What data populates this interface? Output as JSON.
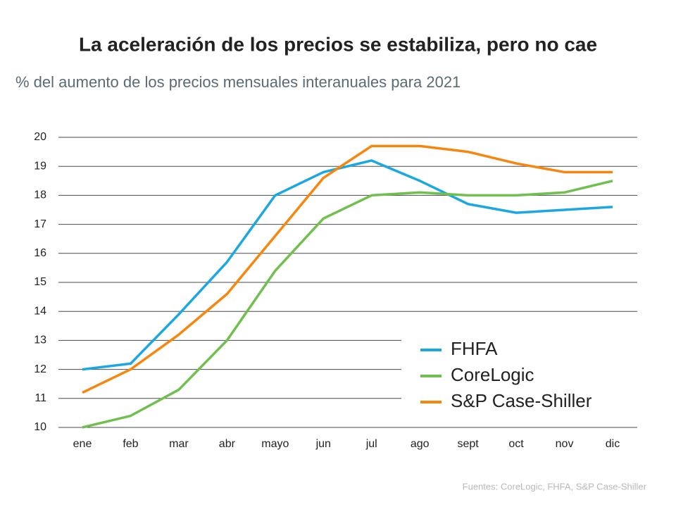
{
  "chart_data": {
    "type": "line",
    "title": "La aceleración de los precios se estabiliza, pero no cae",
    "subtitle": "% del aumento de los precios mensuales interanuales para 2021",
    "source": "Fuentes:  CoreLogic, FHFA, S&P Case-Shiller",
    "categories": [
      "ene",
      "feb",
      "mar",
      "abr",
      "mayo",
      "jun",
      "jul",
      "ago",
      "sept",
      "oct",
      "nov",
      "dic"
    ],
    "series": [
      {
        "name": "FHFA",
        "color": "#1ba7e1",
        "values": [
          12.0,
          12.2,
          13.9,
          15.7,
          18.0,
          18.8,
          19.2,
          18.5,
          17.7,
          17.4,
          17.5,
          17.6
        ]
      },
      {
        "name": "CoreLogic",
        "color": "#70bf4f",
        "values": [
          10.0,
          10.4,
          11.3,
          13.0,
          15.4,
          17.2,
          18.0,
          18.1,
          18.0,
          18.0,
          18.1,
          18.5
        ]
      },
      {
        "name": "S&P Case-Shiller",
        "color": "#f7860e",
        "values": [
          11.2,
          12.0,
          13.2,
          14.6,
          16.6,
          18.6,
          19.7,
          19.7,
          19.5,
          19.1,
          18.8,
          18.8
        ]
      }
    ],
    "ylim": [
      10,
      20
    ],
    "yticks": [
      10,
      11,
      12,
      13,
      14,
      15,
      16,
      17,
      18,
      19,
      20
    ],
    "grid": true,
    "legend": "bottom-right"
  }
}
